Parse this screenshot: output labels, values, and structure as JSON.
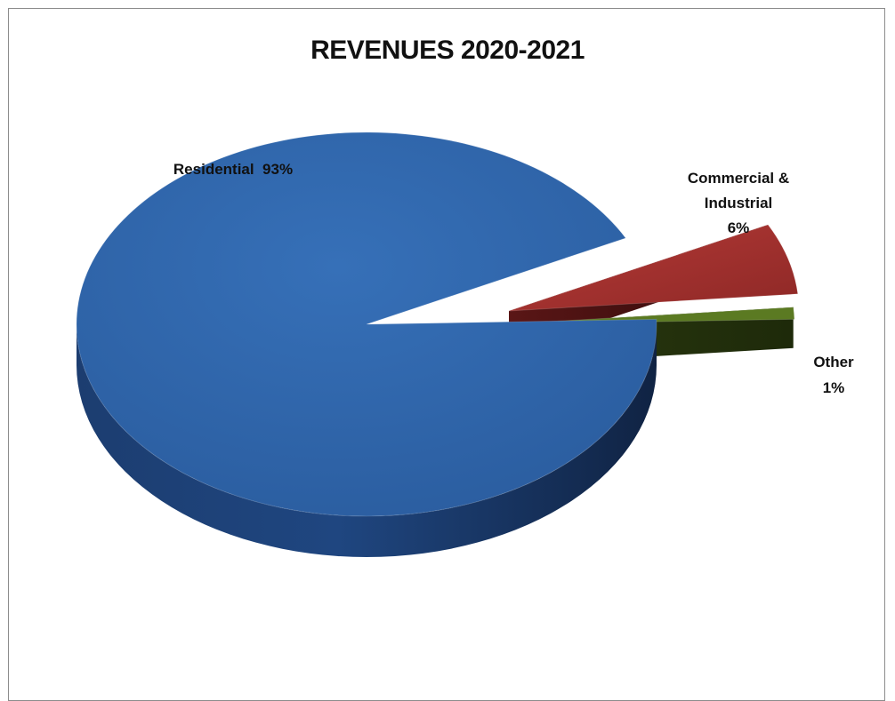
{
  "chart_data": {
    "type": "pie",
    "title": "REVENUES 2020-2021",
    "categories": [
      "Residential",
      "Commercial & Industrial",
      "Other"
    ],
    "values": [
      93,
      6,
      1
    ],
    "units": "%",
    "three_d": true,
    "exploded_slices": [
      "Commercial & Industrial",
      "Other"
    ],
    "data_labels": [
      [
        "Residential  93%"
      ],
      [
        "Commercial &",
        "Industrial",
        "6%"
      ],
      [
        "Other",
        "1%"
      ]
    ],
    "colors": {
      "Residential": "#2f65ad",
      "Commercial & Industrial": "#a83230",
      "Other": "#5b7a22"
    },
    "legend": "none"
  }
}
